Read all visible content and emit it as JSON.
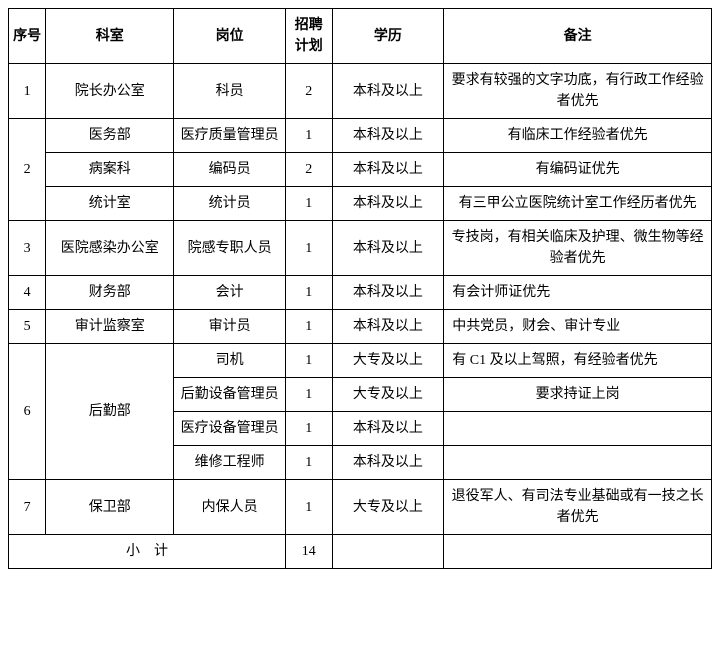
{
  "headers": {
    "seq": "序号",
    "dept": "科室",
    "pos": "岗位",
    "plan": "招聘计划",
    "edu": "学历",
    "note": "备注"
  },
  "rows": {
    "r1": {
      "seq": "1",
      "dept": "院长办公室",
      "pos": "科员",
      "plan": "2",
      "edu": "本科及以上",
      "note": "要求有较强的文字功底，有行政工作经验者优先"
    },
    "r2a": {
      "seq": "2",
      "dept": "医务部",
      "pos": "医疗质量管理员",
      "plan": "1",
      "edu": "本科及以上",
      "note": "有临床工作经验者优先"
    },
    "r2b": {
      "dept": "病案科",
      "pos": "编码员",
      "plan": "2",
      "edu": "本科及以上",
      "note": "有编码证优先"
    },
    "r2c": {
      "dept": "统计室",
      "pos": "统计员",
      "plan": "1",
      "edu": "本科及以上",
      "note": "有三甲公立医院统计室工作经历者优先"
    },
    "r3": {
      "seq": "3",
      "dept": "医院感染办公室",
      "pos": "院感专职人员",
      "plan": "1",
      "edu": "本科及以上",
      "note": "专技岗，有相关临床及护理、微生物等经验者优先"
    },
    "r4": {
      "seq": "4",
      "dept": "财务部",
      "pos": "会计",
      "plan": "1",
      "edu": "本科及以上",
      "note": "有会计师证优先"
    },
    "r5": {
      "seq": "5",
      "dept": "审计监察室",
      "pos": "审计员",
      "plan": "1",
      "edu": "本科及以上",
      "note": "中共党员，财会、审计专业"
    },
    "r6a": {
      "seq": "6",
      "dept": "后勤部",
      "pos": "司机",
      "plan": "1",
      "edu": "大专及以上",
      "note": "有 C1 及以上驾照，有经验者优先"
    },
    "r6b": {
      "pos": "后勤设备管理员",
      "plan": "1",
      "edu": "大专及以上",
      "note": "要求持证上岗"
    },
    "r6c": {
      "pos": "医疗设备管理员",
      "plan": "1",
      "edu": "本科及以上",
      "note": ""
    },
    "r6d": {
      "pos": "维修工程师",
      "plan": "1",
      "edu": "本科及以上",
      "note": ""
    },
    "r7": {
      "seq": "7",
      "dept": "保卫部",
      "pos": "内保人员",
      "plan": "1",
      "edu": "大专及以上",
      "note": "退役军人、有司法专业基础或有一技之长者优先"
    }
  },
  "subtotal": {
    "label": "小　计",
    "plan": "14"
  }
}
